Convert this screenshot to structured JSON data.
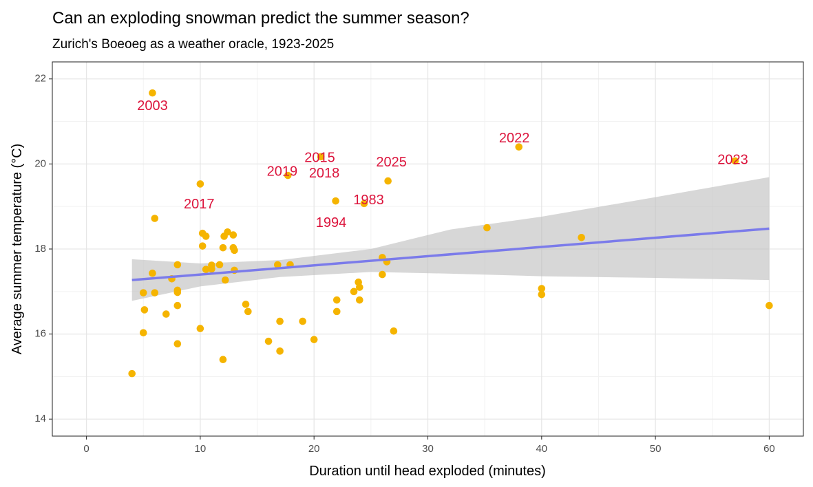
{
  "chart_data": {
    "type": "scatter",
    "title": "Can an exploding snowman predict the summer season?",
    "subtitle": "Zurich's Boeoeg as a weather oracle, 1923-2025",
    "xlabel": "Duration until head exploded (minutes)",
    "ylabel": "Average summer temperature (°C)",
    "xlim": [
      -3,
      63
    ],
    "ylim": [
      13.6,
      22.4
    ],
    "x_ticks": [
      0,
      10,
      20,
      30,
      40,
      50,
      60
    ],
    "y_ticks": [
      14,
      16,
      18,
      20,
      22
    ],
    "grid": true,
    "point_color": "#f5b400",
    "trend_color": "#7b7bea",
    "band_color": "#bdbdbd",
    "label_color": "#dc143c",
    "points": [
      {
        "x": 4,
        "y": 15.07
      },
      {
        "x": 5,
        "y": 16.97
      },
      {
        "x": 5,
        "y": 16.03
      },
      {
        "x": 5.1,
        "y": 16.57
      },
      {
        "x": 5.8,
        "y": 21.67
      },
      {
        "x": 5.8,
        "y": 17.43
      },
      {
        "x": 6,
        "y": 18.72
      },
      {
        "x": 6,
        "y": 16.97
      },
      {
        "x": 7,
        "y": 16.47
      },
      {
        "x": 7.5,
        "y": 17.3
      },
      {
        "x": 8,
        "y": 17.63
      },
      {
        "x": 8,
        "y": 17.03
      },
      {
        "x": 8,
        "y": 16.98
      },
      {
        "x": 8,
        "y": 16.67
      },
      {
        "x": 8,
        "y": 15.77
      },
      {
        "x": 10,
        "y": 19.53
      },
      {
        "x": 10,
        "y": 16.13
      },
      {
        "x": 10.2,
        "y": 18.37
      },
      {
        "x": 10.2,
        "y": 18.07
      },
      {
        "x": 10.5,
        "y": 18.3
      },
      {
        "x": 10.5,
        "y": 17.52
      },
      {
        "x": 11,
        "y": 17.62
      },
      {
        "x": 11,
        "y": 17.53
      },
      {
        "x": 11.7,
        "y": 17.63
      },
      {
        "x": 12,
        "y": 18.03
      },
      {
        "x": 12,
        "y": 15.4
      },
      {
        "x": 12.1,
        "y": 18.3
      },
      {
        "x": 12.2,
        "y": 17.27
      },
      {
        "x": 12.4,
        "y": 18.4
      },
      {
        "x": 12.9,
        "y": 18.33
      },
      {
        "x": 12.9,
        "y": 18.03
      },
      {
        "x": 13,
        "y": 17.97
      },
      {
        "x": 13,
        "y": 17.5
      },
      {
        "x": 14,
        "y": 16.7
      },
      {
        "x": 14.2,
        "y": 16.53
      },
      {
        "x": 16,
        "y": 15.83
      },
      {
        "x": 16.8,
        "y": 17.63
      },
      {
        "x": 17,
        "y": 16.3
      },
      {
        "x": 17,
        "y": 15.6
      },
      {
        "x": 17.7,
        "y": 19.73
      },
      {
        "x": 17.9,
        "y": 17.63
      },
      {
        "x": 19,
        "y": 16.3
      },
      {
        "x": 20,
        "y": 15.87
      },
      {
        "x": 20.6,
        "y": 20.17
      },
      {
        "x": 21.9,
        "y": 19.13
      },
      {
        "x": 22,
        "y": 16.8
      },
      {
        "x": 22,
        "y": 16.53
      },
      {
        "x": 23.5,
        "y": 17.0
      },
      {
        "x": 23.9,
        "y": 17.22
      },
      {
        "x": 24,
        "y": 17.1
      },
      {
        "x": 24,
        "y": 16.8
      },
      {
        "x": 24.4,
        "y": 19.07
      },
      {
        "x": 26,
        "y": 17.8
      },
      {
        "x": 26,
        "y": 17.4
      },
      {
        "x": 26.4,
        "y": 17.7
      },
      {
        "x": 26.5,
        "y": 19.6
      },
      {
        "x": 27,
        "y": 16.07
      },
      {
        "x": 35.2,
        "y": 18.5
      },
      {
        "x": 38,
        "y": 20.4
      },
      {
        "x": 40,
        "y": 17.07
      },
      {
        "x": 40,
        "y": 16.93
      },
      {
        "x": 43.5,
        "y": 18.27
      },
      {
        "x": 57,
        "y": 20.07
      },
      {
        "x": 60,
        "y": 16.67
      }
    ],
    "annotations": [
      {
        "text": "2003",
        "x": 5.8,
        "y": 21.35
      },
      {
        "text": "2022",
        "x": 37.6,
        "y": 20.59
      },
      {
        "text": "2023",
        "x": 56.8,
        "y": 20.08
      },
      {
        "text": "2015",
        "x": 20.5,
        "y": 20.13
      },
      {
        "text": "2025",
        "x": 26.8,
        "y": 20.03
      },
      {
        "text": "2019",
        "x": 17.2,
        "y": 19.81
      },
      {
        "text": "2018",
        "x": 20.9,
        "y": 19.77
      },
      {
        "text": "2017",
        "x": 9.9,
        "y": 19.04
      },
      {
        "text": "1983",
        "x": 24.8,
        "y": 19.14
      },
      {
        "text": "1994",
        "x": 21.5,
        "y": 18.6
      }
    ],
    "trend": {
      "type": "linear",
      "x": [
        4,
        60
      ],
      "y": [
        17.27,
        18.48
      ]
    },
    "confidence_band": [
      {
        "x": 4,
        "lo": 16.78,
        "hi": 17.76
      },
      {
        "x": 10,
        "lo": 17.12,
        "hi": 17.66
      },
      {
        "x": 17,
        "lo": 17.34,
        "hi": 17.74
      },
      {
        "x": 25,
        "lo": 17.46,
        "hi": 18.0
      },
      {
        "x": 32,
        "lo": 17.42,
        "hi": 18.46
      },
      {
        "x": 40,
        "lo": 17.36,
        "hi": 18.76
      },
      {
        "x": 50,
        "lo": 17.32,
        "hi": 19.22
      },
      {
        "x": 60,
        "lo": 17.27,
        "hi": 19.69
      }
    ]
  }
}
